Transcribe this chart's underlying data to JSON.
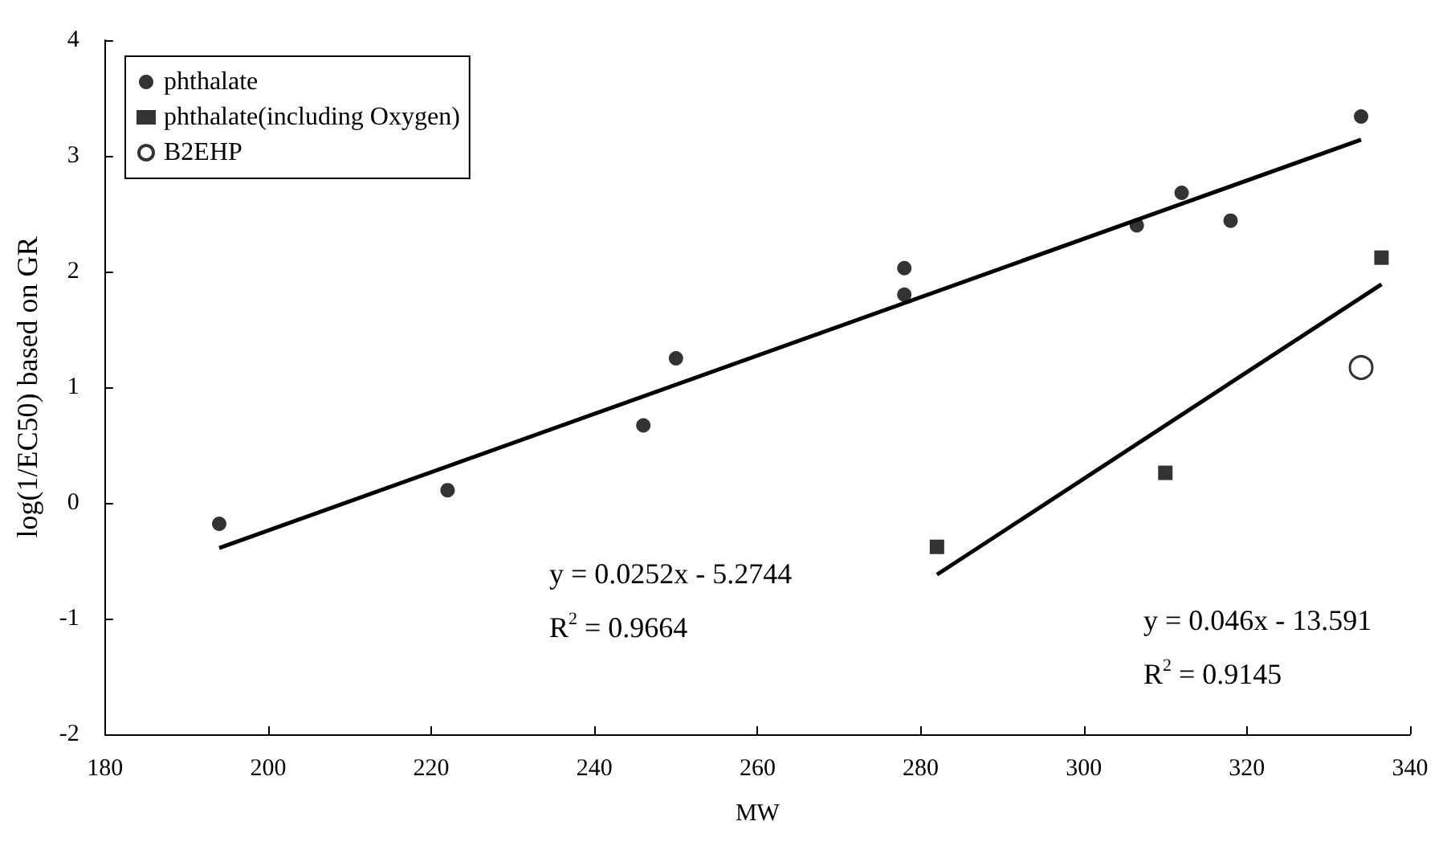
{
  "chart_data": {
    "type": "scatter",
    "xlabel": "MW",
    "ylabel": "log(1/EC50) based on GR",
    "xlim": [
      180,
      340
    ],
    "xticks": [
      180,
      200,
      220,
      240,
      260,
      280,
      300,
      320,
      340
    ],
    "ylim": [
      -2,
      4
    ],
    "yticks": [
      -2,
      -1,
      0,
      1,
      2,
      3,
      4
    ],
    "grid": false,
    "legend": "top left",
    "series": [
      {
        "name": "phthalate",
        "color": "#000000",
        "marker": "circle",
        "x": [
          194,
          222,
          246,
          250,
          278,
          278,
          306.5,
          312,
          318,
          334
        ],
        "values": [
          -0.18,
          0.11,
          0.67,
          1.25,
          1.8,
          2.03,
          2.4,
          2.68,
          2.44,
          3.34
        ]
      },
      {
        "name": "phthalate(including Oxygen)",
        "color": "#000000",
        "marker": "square",
        "x": [
          282,
          310,
          336.5
        ],
        "values": [
          -0.38,
          0.26,
          2.12
        ]
      },
      {
        "name": "B2EHP",
        "color": "#000000",
        "marker": "open_circle",
        "x": [
          334
        ],
        "values": [
          1.17
        ]
      },
      {
        "type": "line",
        "color": "#000000",
        "marker": "none",
        "x": [
          194,
          334
        ],
        "values": [
          -0.39,
          3.14
        ]
      },
      {
        "type": "line",
        "color": "#000000",
        "marker": "none",
        "x": [
          282,
          336.5
        ],
        "values": [
          -0.62,
          1.89
        ]
      }
    ],
    "annotations": [
      "y = 0.0252x - 5.2744",
      "R$^{2}$ = 0.9664",
      "y = 0.046x - 13.591",
      "R$^{2}$ = 0.9145"
    ]
  }
}
